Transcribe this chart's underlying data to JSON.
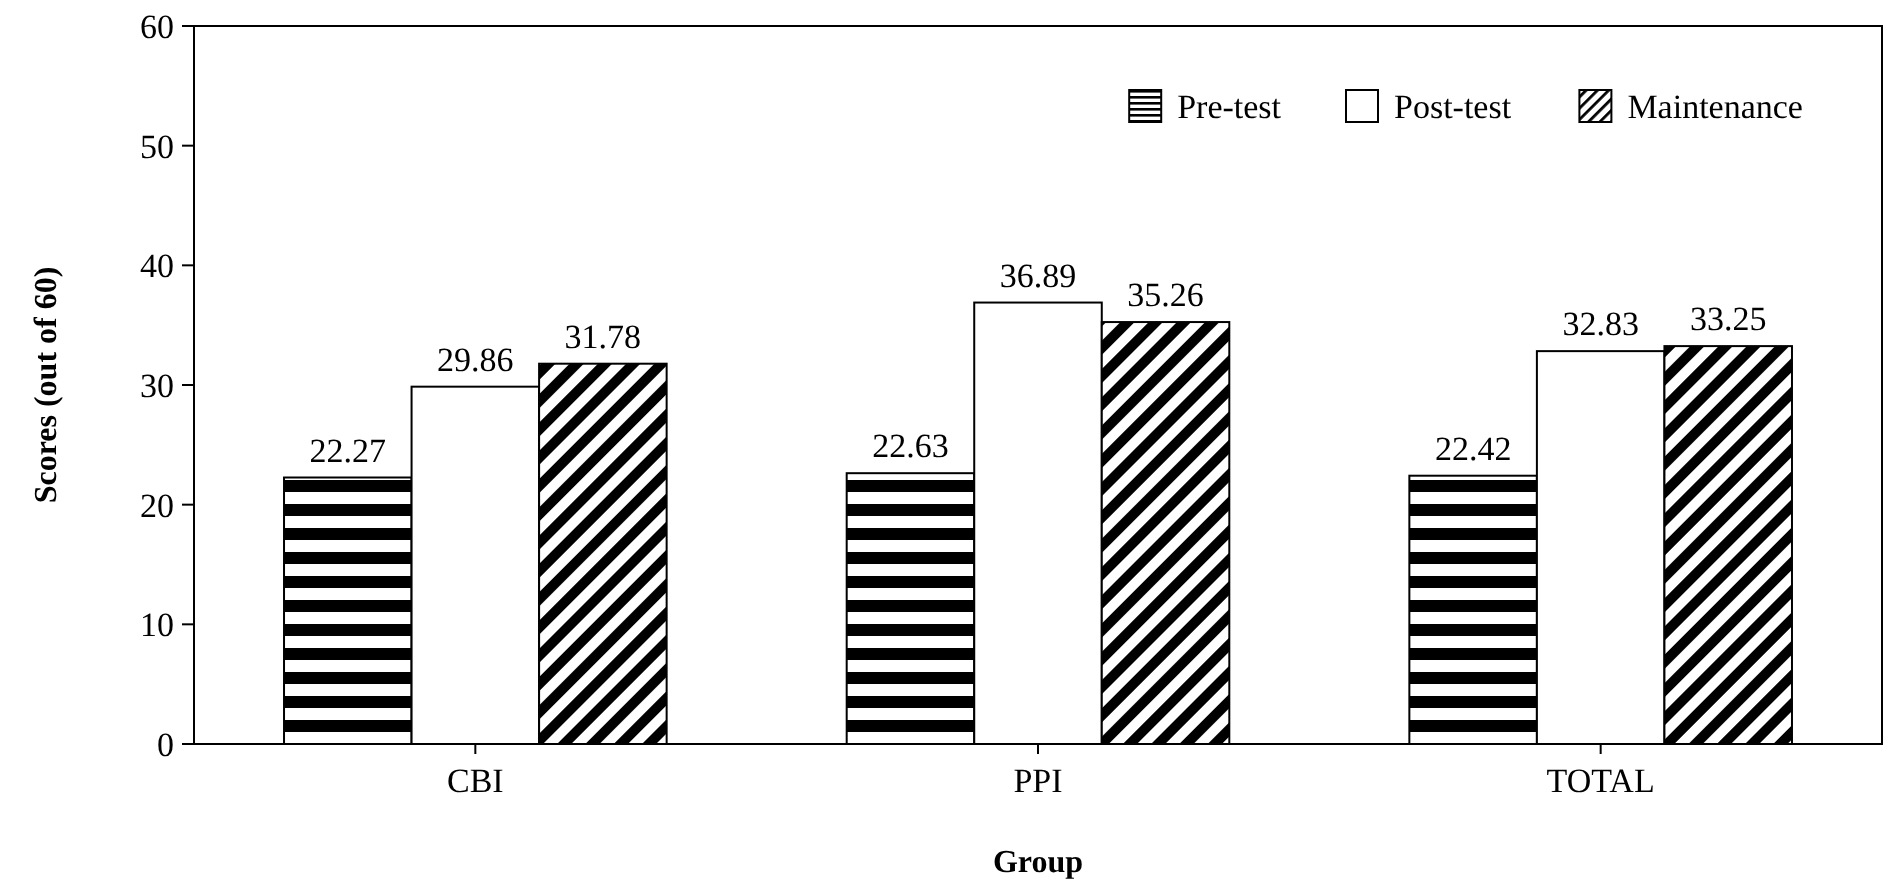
{
  "chart_data": {
    "type": "bar",
    "xlabel": "Group",
    "ylabel": "Scores (out of 60)",
    "categories": [
      "CBI",
      "PPI",
      "TOTAL"
    ],
    "series": [
      {
        "name": "Pre-test",
        "color": "#000000",
        "values": [
          22.27,
          22.63,
          22.42
        ]
      },
      {
        "name": "Post-test",
        "color": "#ffffff",
        "values": [
          29.86,
          36.89,
          32.83
        ]
      },
      {
        "name": "Maintenance",
        "color": "#000000",
        "values": [
          31.78,
          35.26,
          33.25
        ]
      }
    ],
    "ylim": [
      0,
      60
    ],
    "yticks": [
      0,
      10,
      20,
      30,
      40,
      50,
      60
    ],
    "data_labels": true,
    "legend": "top right",
    "grid": false
  }
}
